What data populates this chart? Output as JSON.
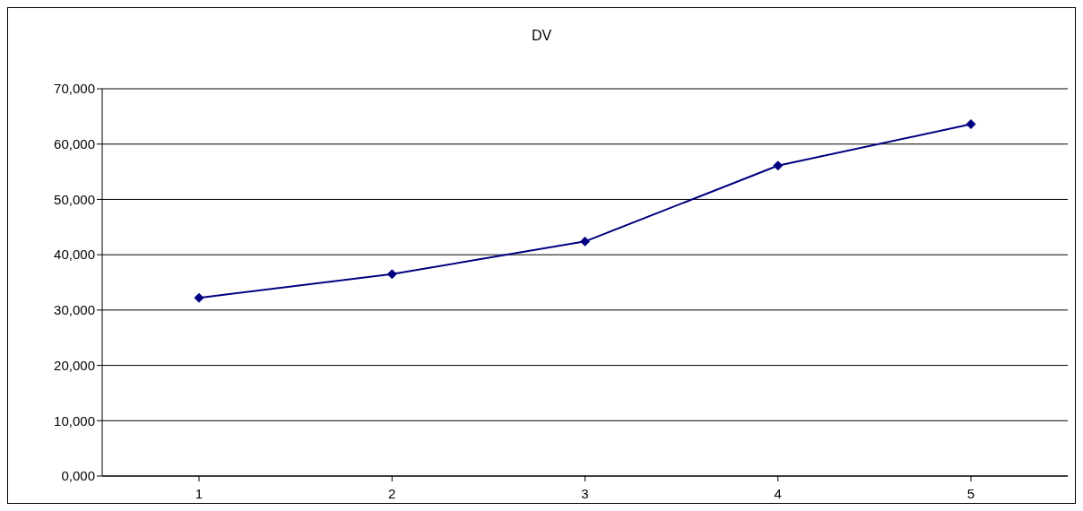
{
  "chart_data": {
    "type": "line",
    "title": "DV",
    "categories": [
      "1",
      "2",
      "3",
      "4",
      "5"
    ],
    "series": [
      {
        "color": "#000080",
        "values": [
          32200,
          36500,
          42400,
          56100,
          63600
        ]
      }
    ],
    "ylim": [
      0,
      70000
    ],
    "yticks": [
      {
        "value": 0,
        "label": "0,000"
      },
      {
        "value": 10000,
        "label": "10,000"
      },
      {
        "value": 20000,
        "label": "20,000"
      },
      {
        "value": 30000,
        "label": "30,000"
      },
      {
        "value": 40000,
        "label": "40,000"
      },
      {
        "value": 50000,
        "label": "50,000"
      },
      {
        "value": 60000,
        "label": "60,000"
      },
      {
        "value": 70000,
        "label": "70,000"
      }
    ],
    "grid": "y",
    "marker": "diamond",
    "line_style": "solid"
  }
}
